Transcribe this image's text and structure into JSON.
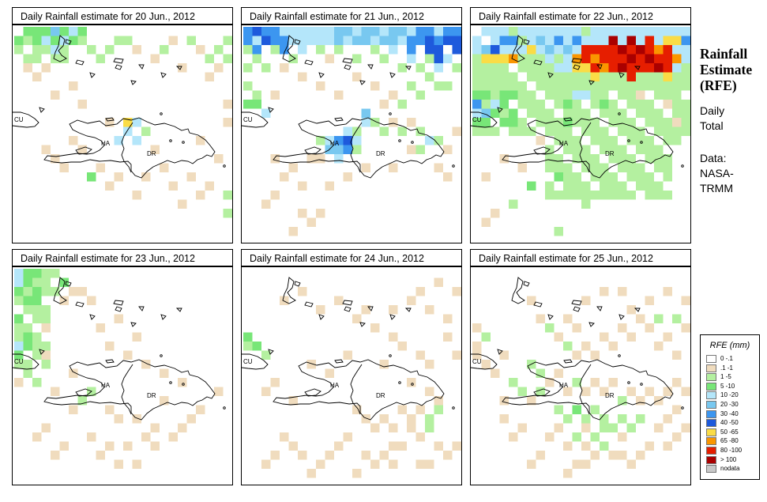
{
  "panels": [
    {
      "title": "Daily Rainfall estimate for  20 Jun., 2012",
      "day": "20"
    },
    {
      "title": "Daily Rainfall estimate for  21 Jun., 2012",
      "day": "21"
    },
    {
      "title": "Daily Rainfall estimate for  22 Jun., 2012",
      "day": "22"
    },
    {
      "title": "Daily Rainfall estimate for  23 Jun., 2012",
      "day": "23"
    },
    {
      "title": "Daily Rainfall estimate for  24 Jun., 2012",
      "day": "24"
    },
    {
      "title": "Daily Rainfall estimate for  25 Jun., 2012",
      "day": "25"
    }
  ],
  "map_labels": {
    "cuba": "CU",
    "haiti": "HA",
    "dominican_republic": "DR"
  },
  "side": {
    "title_lines": [
      "Rainfall",
      "Estimate",
      "(RFE)"
    ],
    "period_lines": [
      "Daily",
      "Total"
    ],
    "source_lines": [
      "Data:",
      "NASA-",
      "TRMM"
    ]
  },
  "legend": {
    "title": "RFE (mm)",
    "items": [
      {
        "label": "0 -.1",
        "color": "#ffffff"
      },
      {
        "label": ".1 -1",
        "color": "#f0dcbe"
      },
      {
        "label": "1 -5",
        "color": "#b4f0a0"
      },
      {
        "label": "5 -10",
        "color": "#78e678"
      },
      {
        "label": "10 -20",
        "color": "#b4e6fa"
      },
      {
        "label": "20 -30",
        "color": "#78c8f0"
      },
      {
        "label": "30 -40",
        "color": "#3c96f0"
      },
      {
        "label": "40 -50",
        "color": "#1e5adc"
      },
      {
        "label": "50 -65",
        "color": "#fadc46"
      },
      {
        "label": "65 -80",
        "color": "#fa9600"
      },
      {
        "label": "80 -100",
        "color": "#e61e00"
      },
      {
        "label": "> 100",
        "color": "#aa0000"
      },
      {
        "label": "nodata",
        "color": "#c8c8c8"
      }
    ]
  }
}
